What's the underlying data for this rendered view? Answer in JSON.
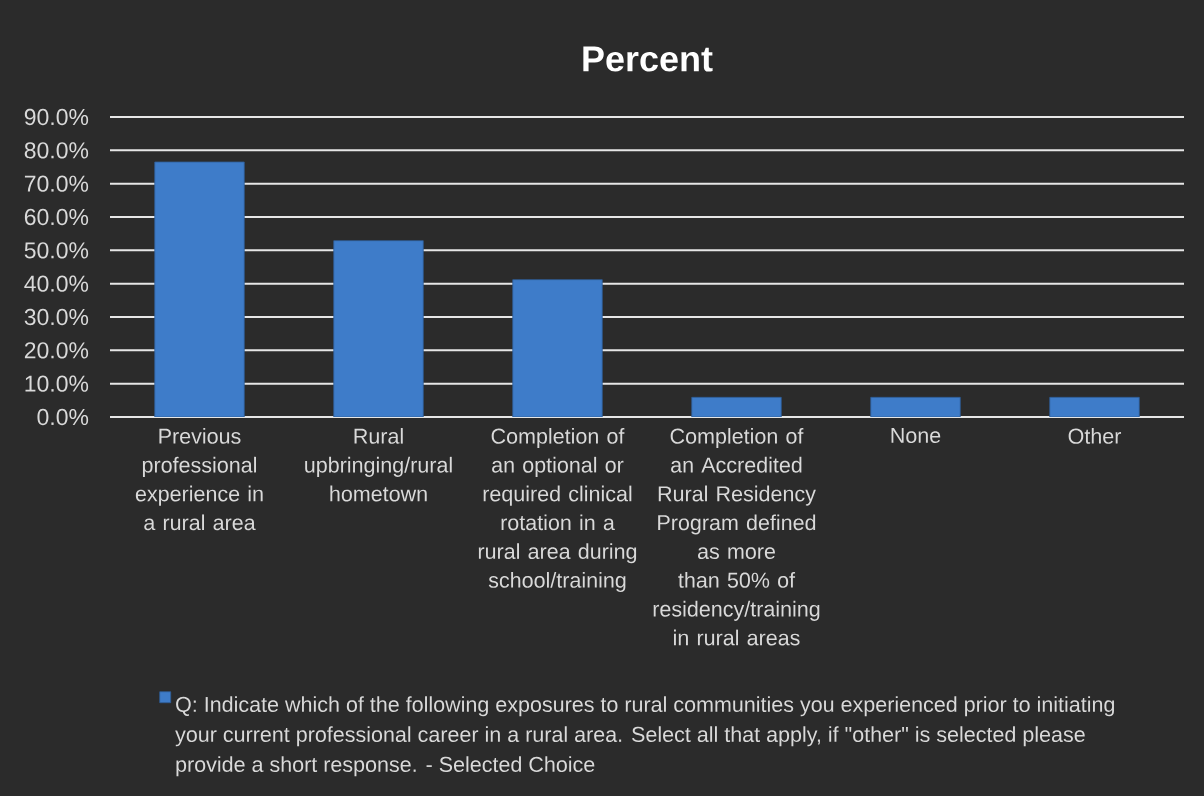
{
  "chart_data": {
    "type": "bar",
    "title": "Percent",
    "categories": [
      "Previous professional experience in a rural area",
      "Rural upbringing/rural hometown",
      "Completion of an optional or required clinical rotation in a rural area during school/training",
      "Completion of an Accredited Rural Residency Program defined as more than 50% of residency/training in rural areas",
      "None",
      "Other"
    ],
    "series": [
      {
        "name": "Q: Indicate which of the following exposures to rural communities you experienced prior to initiating your current professional career in a rural area. Select all that apply, if \"other\" is selected please provide a short response. - Selected Choice",
        "color": "#3e7cc9",
        "values": [
          76.5,
          52.9,
          41.2,
          5.9,
          5.9,
          5.9
        ]
      }
    ],
    "ylim": [
      0,
      90
    ],
    "yticks": [
      {
        "value": 0,
        "label": "0.0%"
      },
      {
        "value": 10,
        "label": "10.0%"
      },
      {
        "value": 20,
        "label": "20.0%"
      },
      {
        "value": 30,
        "label": "30.0%"
      },
      {
        "value": 40,
        "label": "40.0%"
      },
      {
        "value": 50,
        "label": "50.0%"
      },
      {
        "value": 60,
        "label": "60.0%"
      },
      {
        "value": 70,
        "label": "70.0%"
      },
      {
        "value": 80,
        "label": "80.0%"
      },
      {
        "value": 90,
        "label": "90.0%"
      }
    ],
    "grid": "y",
    "legend": "bottom"
  }
}
